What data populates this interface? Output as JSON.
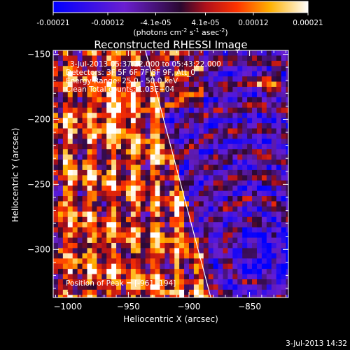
{
  "chart_data": {
    "type": "heatmap",
    "title": "Reconstructed RHESSI Image",
    "colorbar": {
      "ticks": [
        "-0.00021",
        "-0.00012",
        "-4.1e-05",
        "4.1e-05",
        "0.00012",
        "0.00021"
      ],
      "tick_values": [
        -0.00021,
        -0.00012,
        -4.1e-05,
        4.1e-05,
        0.00012,
        0.00021
      ],
      "range": [
        -0.00021,
        0.00021
      ],
      "units_label": "(photons cm",
      "units_sup1": "-2",
      "units_mid": " s",
      "units_sup2": "-1",
      "units_mid2": " asec",
      "units_sup3": "-2",
      "units_end": ")"
    },
    "xlabel": "Heliocentric X (arcsec)",
    "ylabel": "Heliocentric Y (arcsec)",
    "xlim": [
      -1012,
      -818
    ],
    "ylim": [
      -337,
      -147
    ],
    "xticks": [
      -1000,
      -950,
      -900,
      -850
    ],
    "yticks": [
      -150,
      -200,
      -250,
      -300
    ],
    "info_lines": [
      "3-Jul-2013 05:37:22.000 to 05:43:22.000",
      "Detectors: 3F 5F 6F 7F 8F 9F, Att_0",
      "Energy Range: 25.0 - 50.0 keV",
      "Clean    Total counts: 1.03E+04"
    ],
    "peak_label": "Position of Peak = [-961,-194]",
    "peak": [
      -961,
      -194
    ],
    "limb_line": [
      [
        -936,
        -147
      ],
      [
        -882,
        -337
      ]
    ],
    "timestamp": "3-Jul-2013 14:32"
  }
}
